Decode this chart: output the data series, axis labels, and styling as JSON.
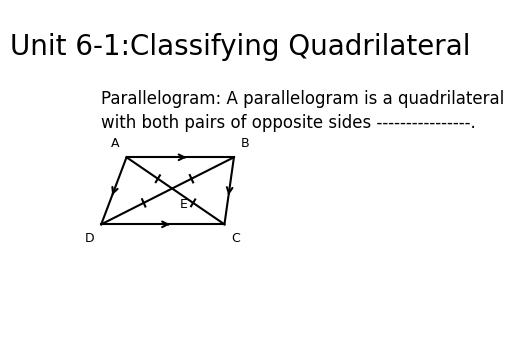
{
  "title": "Unit 6-1:Classifying Quadrilateral",
  "title_fontsize": 20,
  "body_text_line1": "Parallelogram: A parallelogram is a quadrilateral",
  "body_text_line2": "with both pairs of opposite sides ----------------.",
  "body_fontsize": 12,
  "background_color": "#ffffff",
  "text_color": "#000000",
  "line_color": "#000000",
  "line_width": 1.5
}
